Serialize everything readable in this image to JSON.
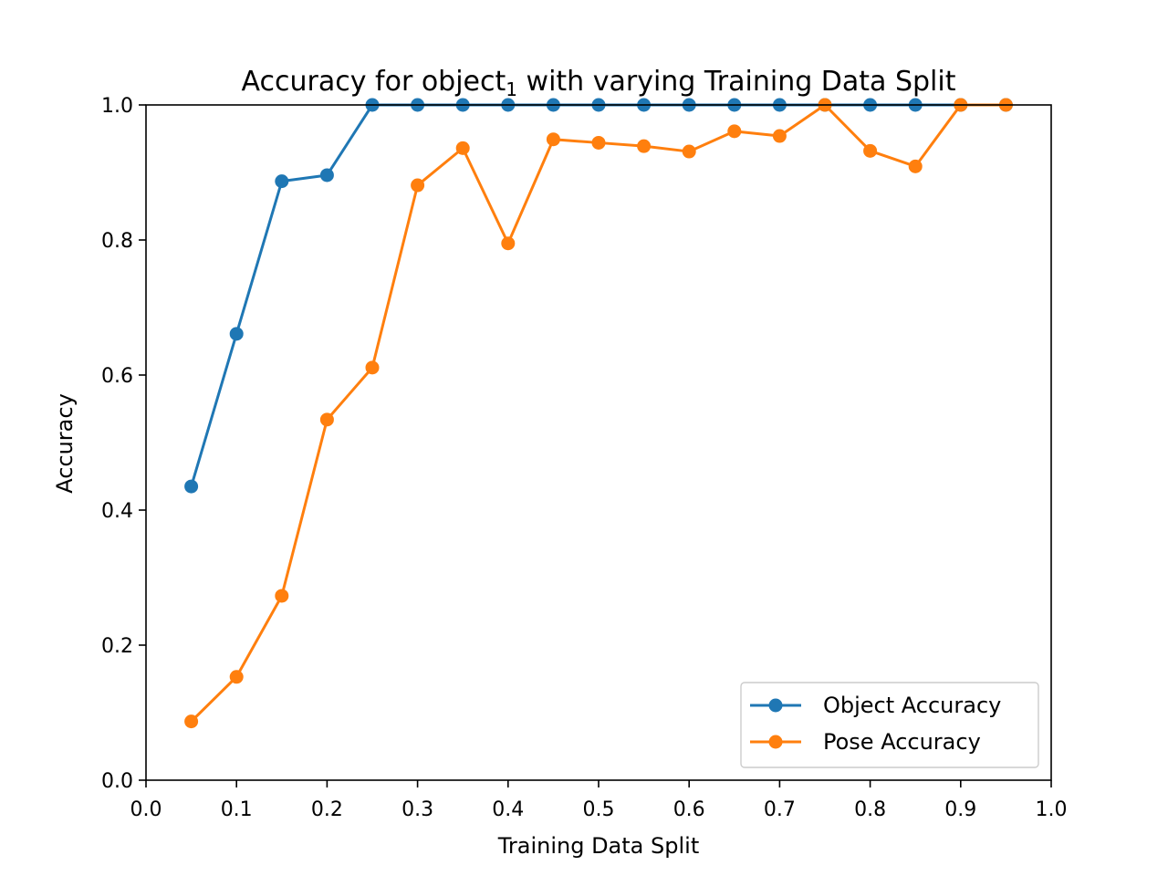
{
  "chart_data": {
    "type": "line",
    "title": {
      "prefix": "Accuracy for object",
      "subscript": "1",
      "suffix": " with varying Training Data Split"
    },
    "xlabel": "Training Data Split",
    "ylabel": "Accuracy",
    "xlim": [
      0.0,
      1.0
    ],
    "ylim": [
      0.0,
      1.0
    ],
    "xticks": [
      "0.0",
      "0.1",
      "0.2",
      "0.3",
      "0.4",
      "0.5",
      "0.6",
      "0.7",
      "0.8",
      "0.9",
      "1.0"
    ],
    "yticks": [
      "0.0",
      "0.2",
      "0.4",
      "0.6",
      "0.8",
      "1.0"
    ],
    "x": [
      0.05,
      0.1,
      0.15,
      0.2,
      0.25,
      0.3,
      0.35,
      0.4,
      0.45,
      0.5,
      0.55,
      0.6,
      0.65,
      0.7,
      0.75,
      0.8,
      0.85,
      0.9,
      0.95
    ],
    "series": [
      {
        "name": "Object Accuracy",
        "color": "#1f77b4",
        "marker": "circle",
        "values": [
          0.435,
          0.661,
          0.887,
          0.896,
          1.0,
          1.0,
          1.0,
          1.0,
          1.0,
          1.0,
          1.0,
          1.0,
          1.0,
          1.0,
          1.0,
          1.0,
          1.0,
          1.0,
          1.0
        ]
      },
      {
        "name": "Pose Accuracy",
        "color": "#ff7f0e",
        "marker": "circle",
        "values": [
          0.087,
          0.153,
          0.273,
          0.534,
          0.611,
          0.881,
          0.936,
          0.795,
          0.949,
          0.944,
          0.939,
          0.931,
          0.961,
          0.954,
          1.0,
          0.932,
          0.909,
          1.0,
          1.0
        ]
      }
    ],
    "grid": false,
    "legend": "lower right"
  }
}
